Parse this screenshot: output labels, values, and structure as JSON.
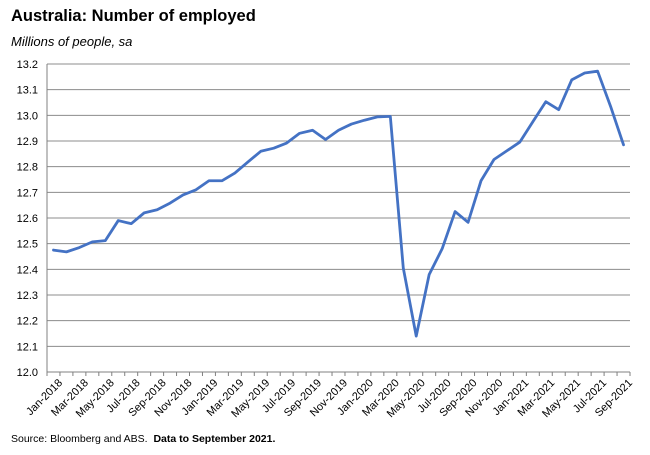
{
  "chart_data": {
    "type": "line",
    "title": "Australia: Number of employed",
    "subtitle": "Millions of people, sa",
    "xlabel": "",
    "ylabel": "",
    "ylim": [
      12.0,
      13.2
    ],
    "yticks": [
      "13.2",
      "13.1",
      "13.0",
      "12.9",
      "12.8",
      "12.7",
      "12.6",
      "12.5",
      "12.4",
      "12.3",
      "12.2",
      "12.1",
      "12.0"
    ],
    "grid": true,
    "legend": "none",
    "line_color": "#4472C4",
    "x_tick_labels": [
      "Jan-2018",
      "Mar-2018",
      "May-2018",
      "Jul-2018",
      "Sep-2018",
      "Nov-2018",
      "Jan-2019",
      "Mar-2019",
      "May-2019",
      "Jul-2019",
      "Sep-2019",
      "Nov-2019",
      "Jan-2020",
      "Mar-2020",
      "May-2020",
      "Jul-2020",
      "Sep-2020",
      "Nov-2020",
      "Jan-2021",
      "Mar-2021",
      "May-2021",
      "Jul-2021",
      "Sep-2021"
    ],
    "x": [
      "Jan-2018",
      "Feb-2018",
      "Mar-2018",
      "Apr-2018",
      "May-2018",
      "Jun-2018",
      "Jul-2018",
      "Aug-2018",
      "Sep-2018",
      "Oct-2018",
      "Nov-2018",
      "Dec-2018",
      "Jan-2019",
      "Feb-2019",
      "Mar-2019",
      "Apr-2019",
      "May-2019",
      "Jun-2019",
      "Jul-2019",
      "Aug-2019",
      "Sep-2019",
      "Oct-2019",
      "Nov-2019",
      "Dec-2019",
      "Jan-2020",
      "Feb-2020",
      "Mar-2020",
      "Apr-2020",
      "May-2020",
      "Jun-2020",
      "Jul-2020",
      "Aug-2020",
      "Sep-2020",
      "Oct-2020",
      "Nov-2020",
      "Dec-2020",
      "Jan-2021",
      "Feb-2021",
      "Mar-2021",
      "Apr-2021",
      "May-2021",
      "Jun-2021",
      "Jul-2021",
      "Aug-2021",
      "Sep-2021"
    ],
    "series": [
      {
        "values": [
          12.475,
          12.468,
          12.485,
          12.507,
          12.512,
          12.59,
          12.578,
          12.62,
          12.632,
          12.658,
          12.69,
          12.71,
          12.745,
          12.745,
          12.775,
          12.818,
          12.86,
          12.872,
          12.892,
          12.93,
          12.942,
          12.906,
          12.942,
          12.966,
          12.981,
          12.994,
          12.996,
          12.405,
          12.14,
          12.38,
          12.48,
          12.625,
          12.583,
          12.745,
          12.828,
          12.862,
          12.896,
          12.975,
          13.053,
          13.022,
          13.138,
          13.165,
          13.172,
          13.035,
          12.885
        ]
      }
    ]
  },
  "source": {
    "text": "Source: Bloomberg and ABS.",
    "bold_text": "Data to September 2021."
  }
}
